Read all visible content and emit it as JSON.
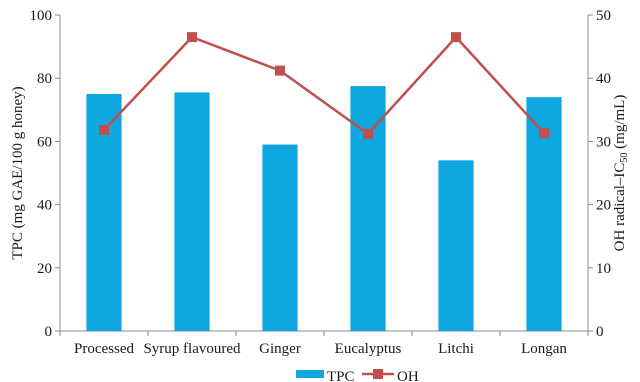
{
  "chart_data": {
    "type": "bar",
    "categories": [
      "Processed",
      "Syrup flavoured",
      "Ginger",
      "Eucalyptus",
      "Litchi",
      "Longan"
    ],
    "series": [
      {
        "name": "TPC",
        "type": "bar",
        "axis": "left",
        "values": [
          75,
          75.5,
          59,
          77.5,
          54,
          74
        ]
      },
      {
        "name": "OH",
        "type": "line",
        "axis": "right",
        "values": [
          31.8,
          46.5,
          41.2,
          31.2,
          46.5,
          31.3
        ]
      }
    ],
    "ylabel_left": "TPC (mg GAE/100 g honey)",
    "ylabel_right": "OH radical–IC₅₀ (mg/mL)",
    "ylim_left": [
      0,
      100
    ],
    "ylim_right": [
      0,
      50
    ],
    "yticks_left": [
      "0",
      "20",
      "40",
      "60",
      "80",
      "100"
    ],
    "yticks_right": [
      "0",
      "10",
      "20",
      "30",
      "40",
      "50"
    ],
    "legend_position": "bottom-center",
    "grid": false,
    "colors": {
      "TPC": "#0fa7e0",
      "OH": "#c0504d"
    }
  }
}
